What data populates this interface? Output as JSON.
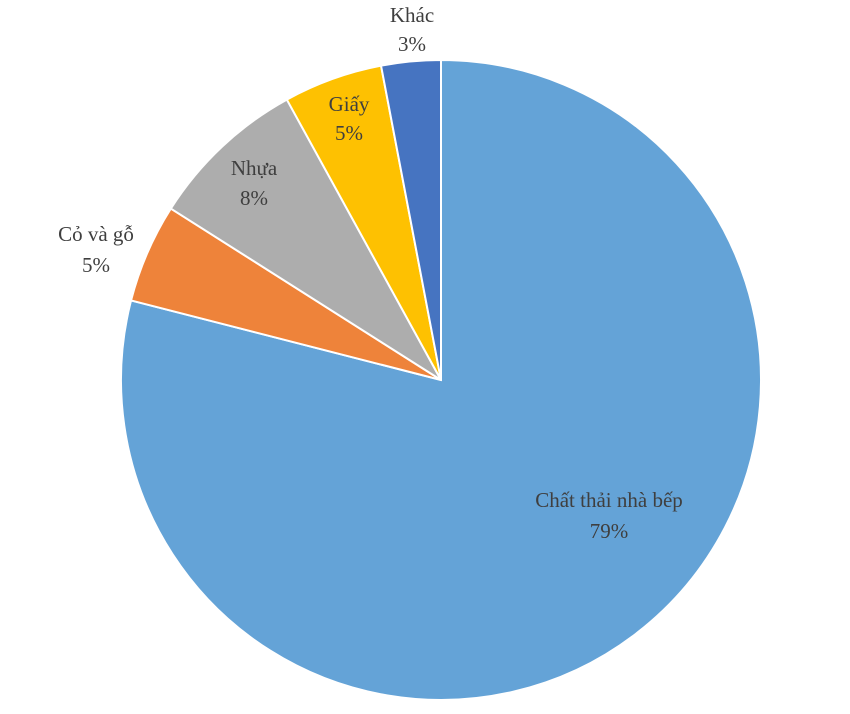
{
  "chart_data": {
    "type": "pie",
    "title": "",
    "start_angle_deg": 0,
    "direction": "clockwise",
    "slices": [
      {
        "name": "Chất thải nhà bếp",
        "value": 79,
        "pct_label": "79%",
        "color": "#64A3D7"
      },
      {
        "name": "Cỏ và gỗ",
        "value": 5,
        "pct_label": "5%",
        "color": "#EE833A"
      },
      {
        "name": "Nhựa",
        "value": 8,
        "pct_label": "8%",
        "color": "#ADADAD"
      },
      {
        "name": "Giấy",
        "value": 5,
        "pct_label": "5%",
        "color": "#FEC101"
      },
      {
        "name": "Khác",
        "value": 3,
        "pct_label": "3%",
        "color": "#4674C1"
      }
    ]
  }
}
